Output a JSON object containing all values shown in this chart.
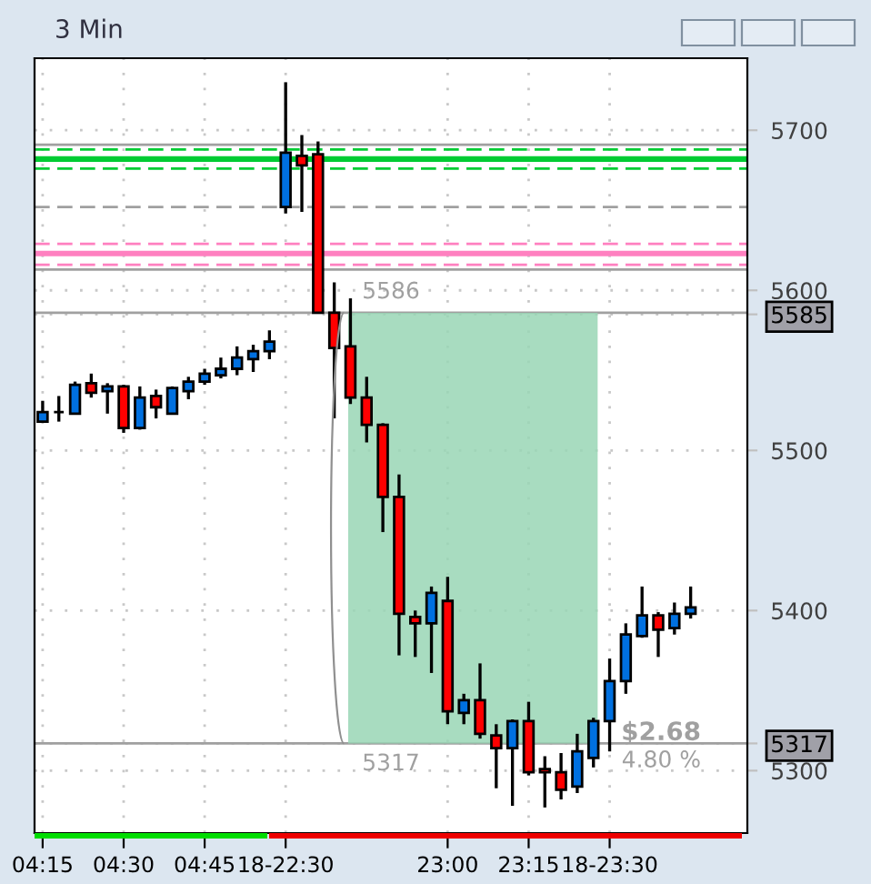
{
  "chart_data": {
    "type": "candlestick",
    "title": "3 Min",
    "categories": [
      "04:15",
      null,
      null,
      null,
      null,
      "04:30",
      null,
      null,
      null,
      null,
      "04:45",
      null,
      null,
      null,
      null,
      "18-22:30",
      null,
      null,
      null,
      null,
      null,
      null,
      null,
      null,
      null,
      "23:00",
      null,
      null,
      null,
      null,
      "23:15",
      null,
      null,
      null,
      null,
      "18-23:30",
      null,
      null,
      null,
      null,
      null,
      null,
      null,
      null
    ],
    "ohlc": [
      [
        5518,
        5531,
        5518,
        5524
      ],
      [
        5524,
        5534,
        5518,
        5524
      ],
      [
        5523,
        5543,
        5523,
        5541
      ],
      [
        5542,
        5548,
        5533,
        5536
      ],
      [
        5537,
        5542,
        5523,
        5540
      ],
      [
        5540,
        5541,
        5511,
        5514
      ],
      [
        5514,
        5540,
        5513,
        5533
      ],
      [
        5534,
        5538,
        5520,
        5527
      ],
      [
        5523,
        5540,
        5523,
        5539
      ],
      [
        5537,
        5546,
        5532,
        5543
      ],
      [
        5543,
        5551,
        5541,
        5548
      ],
      [
        5547,
        5558,
        5545,
        5551
      ],
      [
        5551,
        5565,
        5547,
        5558
      ],
      [
        5557,
        5566,
        5549,
        5562
      ],
      [
        5562,
        5575,
        5557,
        5568
      ],
      [
        5652,
        5730,
        5648,
        5686
      ],
      [
        5684,
        5697,
        5649,
        5678
      ],
      [
        5685,
        5693,
        5586,
        5586
      ],
      [
        5586,
        5605,
        5520,
        5564
      ],
      [
        5565,
        5595,
        5529,
        5533
      ],
      [
        5533,
        5546,
        5505,
        5516
      ],
      [
        5516,
        5517,
        5449,
        5471
      ],
      [
        5471,
        5485,
        5372,
        5398
      ],
      [
        5396,
        5400,
        5371,
        5392
      ],
      [
        5392,
        5415,
        5361,
        5411
      ],
      [
        5406,
        5421,
        5329,
        5337
      ],
      [
        5336,
        5348,
        5329,
        5344
      ],
      [
        5344,
        5367,
        5320,
        5323
      ],
      [
        5322,
        5329,
        5289,
        5314
      ],
      [
        5314,
        5332,
        5278,
        5331
      ],
      [
        5331,
        5343,
        5297,
        5299
      ],
      [
        5301,
        5309,
        5277,
        5299
      ],
      [
        5299,
        5311,
        5282,
        5288
      ],
      [
        5290,
        5323,
        5286,
        5312
      ],
      [
        5308,
        5333,
        5302,
        5331
      ],
      [
        5331,
        5370,
        5312,
        5356
      ],
      [
        5356,
        5392,
        5348,
        5385
      ],
      [
        5384,
        5415,
        5383,
        5397
      ],
      [
        5397,
        5399,
        5371,
        5388
      ],
      [
        5389,
        5405,
        5385,
        5398
      ],
      [
        5398,
        5415,
        5395,
        5402
      ],
      null,
      null,
      null
    ],
    "colors": [
      "#0070e0",
      "#000000",
      "#0070e0",
      "#ff0000",
      "#0070e0",
      "#ff0000",
      "#0070e0",
      "#ff0000",
      "#0070e0",
      "#0070e0",
      "#0070e0",
      "#0070e0",
      "#0070e0",
      "#0070e0",
      "#0070e0",
      "#0070e0",
      "#ff0000",
      "#ff0000",
      "#ff0000",
      "#ff0000",
      "#ff0000",
      "#ff0000",
      "#ff0000",
      "#ff0000",
      "#0070e0",
      "#ff0000",
      "#0070e0",
      "#ff0000",
      "#ff0000",
      "#0070e0",
      "#ff0000",
      "#ff0000",
      "#ff0000",
      "#0070e0",
      "#0070e0",
      "#0070e0",
      "#0070e0",
      "#0070e0",
      "#ff0000",
      "#0070e0",
      "#0070e0",
      null,
      null,
      null
    ],
    "ylim": [
      5261,
      5745
    ],
    "yticks": [
      5300,
      5400,
      5500,
      5600,
      5700,
      {
        "value": 5585,
        "label": "5585"
      },
      {
        "value": 5317,
        "label": "5317"
      }
    ],
    "grid": true,
    "ref_lines": [
      {
        "axis": "y",
        "value": 5691,
        "color": "#a0a0a0",
        "line_style": "solid"
      },
      {
        "axis": "y",
        "value": 5688,
        "color": "#00cc33",
        "line_style": "dashed"
      },
      {
        "axis": "y",
        "value": 5682,
        "color": "#00cc33",
        "line_style": "solid"
      },
      {
        "axis": "y",
        "value": 5676,
        "color": "#00cc33",
        "line_style": "dashed"
      },
      {
        "axis": "y",
        "value": 5652,
        "color": "#a0a0a0",
        "line_style": "dashed"
      },
      {
        "axis": "y",
        "value": 5629,
        "color": "#ff80c0",
        "line_style": "dashed"
      },
      {
        "axis": "y",
        "value": 5623,
        "color": "#ff80c0",
        "line_style": "solid"
      },
      {
        "axis": "y",
        "value": 5616,
        "color": "#ff80c0",
        "line_style": "dashed"
      },
      {
        "axis": "y",
        "value": 5613,
        "color": "#a0a0a0",
        "line_style": "solid"
      },
      {
        "axis": "y",
        "value": 5586,
        "label": "5586",
        "color": "#a0a0a0",
        "line_style": "solid"
      },
      {
        "axis": "y",
        "value": 5317,
        "label": "5317",
        "color": "#a0a0a0",
        "line_style": "solid"
      }
    ],
    "bands": [
      {
        "axis": "y",
        "from": 5317,
        "to": 5586,
        "color": "#99d6b5"
      }
    ],
    "annotations": [
      "$2.68",
      "4.80 %"
    ]
  }
}
